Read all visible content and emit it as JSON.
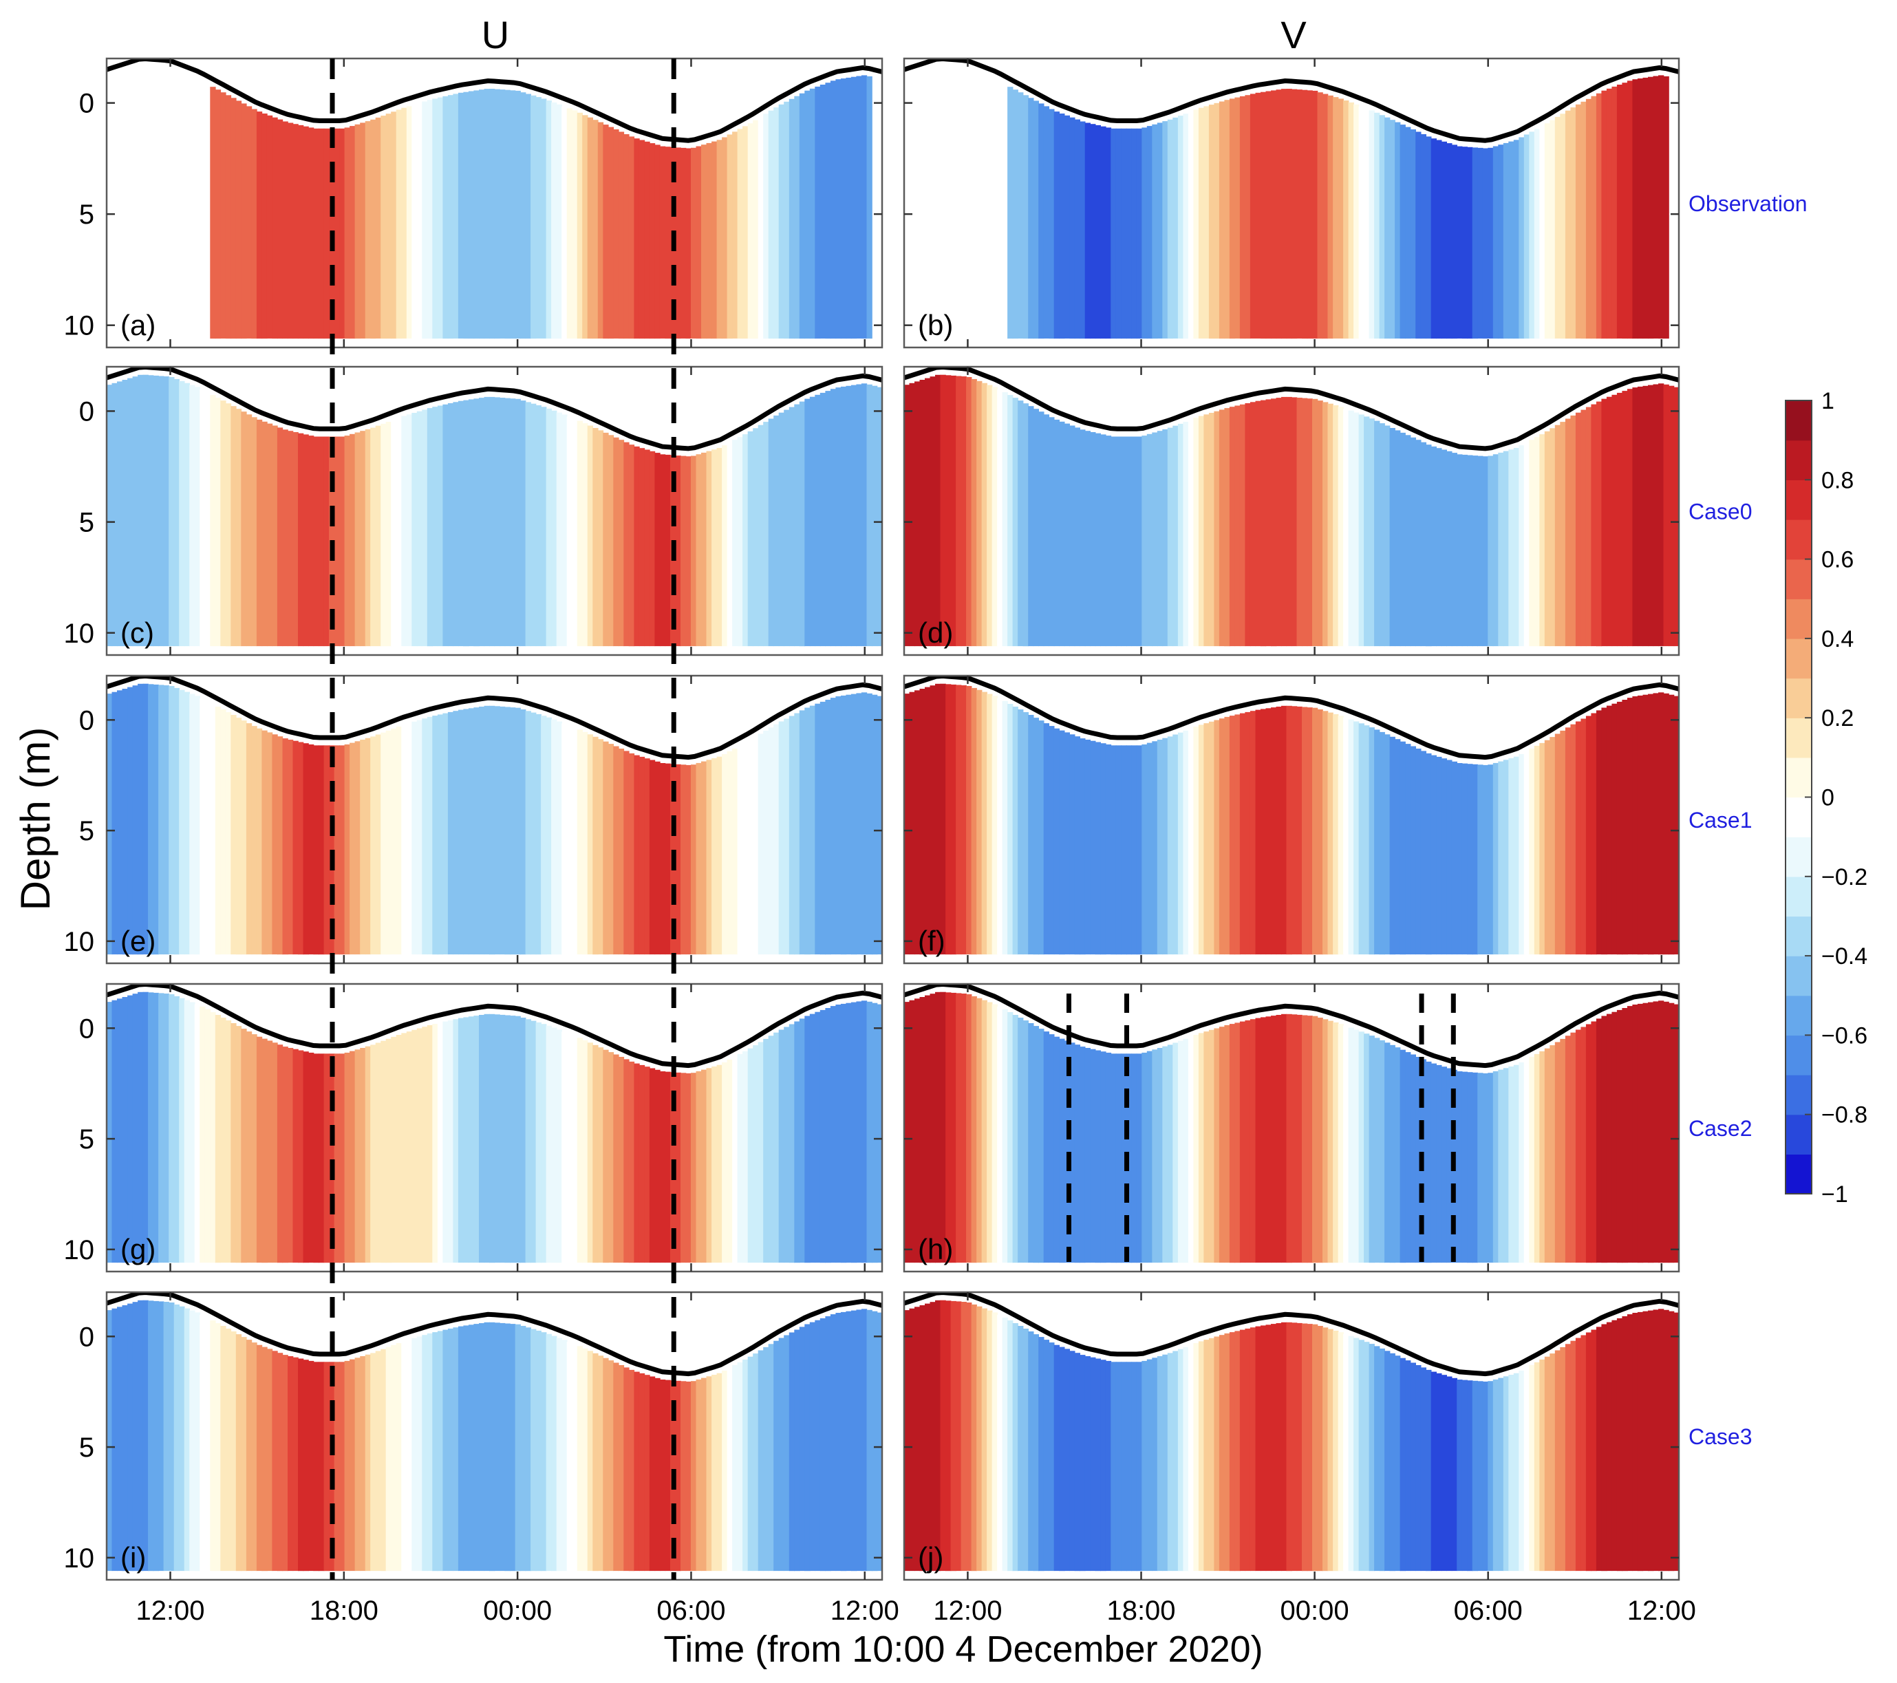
{
  "figure": {
    "column_titles": [
      "U",
      "V"
    ],
    "ylabel": "Depth (m)",
    "xlabel": "Time (from 10:00 4 December 2020)",
    "row_labels": [
      "Observation",
      "Case0",
      "Case1",
      "Case2",
      "Case3"
    ],
    "panel_labels": [
      "(a)",
      "(b)",
      "(c)",
      "(d)",
      "(e)",
      "(f)",
      "(g)",
      "(h)",
      "(i)",
      "(j)"
    ]
  },
  "colors": {
    "row_label": "#1f1fe0",
    "surface_line": "#000000",
    "colormap": [
      "#1414d2",
      "#2848dc",
      "#3b6fe3",
      "#4f8ee8",
      "#66a8ec",
      "#86c2f0",
      "#a8daf5",
      "#cdeefa",
      "#ebf9fd",
      "#ffffff",
      "#fffbe6",
      "#fde9bd",
      "#f9cd97",
      "#f4ac78",
      "#ef8a5f",
      "#ea654c",
      "#e24339",
      "#d52a2a",
      "#bb1a22",
      "#96101e"
    ]
  },
  "chart_data": {
    "type": "heatmap",
    "layout": "5 rows x 2 columns (U, V)",
    "x": {
      "ticks": [
        "12:00",
        "18:00",
        "00:00",
        "06:00",
        "12:00"
      ],
      "tick_hours": [
        2,
        8,
        14,
        20,
        26
      ],
      "range_hours": [
        -0.2,
        26.6
      ]
    },
    "y": {
      "label": "Depth (m)",
      "ticks": [
        0,
        5,
        10
      ],
      "range": [
        11,
        -2
      ],
      "reversed": true
    },
    "colorbar": {
      "range": [
        -1,
        1
      ],
      "ticks": [
        1,
        0.8,
        0.6,
        0.4,
        0.2,
        0,
        -0.2,
        -0.4,
        -0.6,
        -0.8,
        -1
      ],
      "tick_labels": [
        "1",
        "0.8",
        "0.6",
        "0.4",
        "0.2",
        "0",
        "−0.2",
        "−0.4",
        "−0.6",
        "−0.8",
        "−1"
      ]
    },
    "surface_elevation": {
      "time_hours": [
        -0.2,
        1,
        2,
        3,
        4,
        5,
        6,
        7,
        8,
        9,
        10,
        11,
        12,
        13,
        14,
        15,
        16,
        17,
        18,
        19,
        20,
        21,
        22,
        23,
        24,
        25,
        26,
        26.6
      ],
      "depth_m": [
        -1.5,
        -2.0,
        -1.9,
        -1.4,
        -0.7,
        0.0,
        0.5,
        0.8,
        0.8,
        0.4,
        -0.1,
        -0.5,
        -0.8,
        -1.0,
        -0.9,
        -0.5,
        0.0,
        0.6,
        1.2,
        1.6,
        1.7,
        1.3,
        0.6,
        -0.2,
        -0.9,
        -1.4,
        -1.6,
        -1.4
      ]
    },
    "dashed_lines_hours": {
      "U_all_panels": [
        7.6,
        19.4
      ],
      "V_case2": [
        5.5,
        7.5,
        17.7,
        18.8
      ]
    },
    "velocity_profiles": {
      "time_hours": [
        0,
        1,
        2,
        3,
        4,
        5,
        6,
        7,
        8,
        9,
        10,
        11,
        12,
        13,
        14,
        15,
        16,
        17,
        18,
        19,
        20,
        21,
        22,
        23,
        24,
        25,
        26,
        26.6
      ],
      "U": {
        "Observation": {
          "start_hour": 3.3,
          "end_hour": 26.2,
          "values": [
            null,
            null,
            null,
            null,
            0.5,
            0.6,
            0.65,
            0.7,
            0.6,
            0.35,
            0.15,
            -0.2,
            -0.4,
            -0.5,
            -0.5,
            -0.3,
            0.1,
            0.5,
            0.6,
            0.7,
            0.6,
            0.35,
            0.1,
            -0.3,
            -0.55,
            -0.7,
            -0.6,
            null
          ]
        },
        "Case0": {
          "values": [
            -0.4,
            -0.5,
            -0.4,
            -0.1,
            0.2,
            0.4,
            0.55,
            0.7,
            0.5,
            0.2,
            -0.1,
            -0.35,
            -0.45,
            -0.5,
            -0.45,
            -0.3,
            0.0,
            0.3,
            0.6,
            0.75,
            0.5,
            0.1,
            -0.3,
            -0.45,
            -0.5,
            -0.55,
            -0.5,
            -0.45
          ]
        },
        "Case1": {
          "values": [
            -0.6,
            -0.65,
            -0.4,
            -0.1,
            0.1,
            0.25,
            0.55,
            0.8,
            0.5,
            0.15,
            0.0,
            -0.3,
            -0.45,
            -0.5,
            -0.45,
            -0.25,
            0.0,
            0.3,
            0.6,
            0.8,
            0.5,
            0.1,
            -0.05,
            -0.2,
            -0.45,
            -0.6,
            -0.55,
            -0.5
          ]
        },
        "Case2": {
          "values": [
            -0.6,
            -0.65,
            -0.4,
            0.0,
            0.2,
            0.4,
            0.55,
            0.8,
            0.5,
            0.2,
            0.15,
            0.1,
            -0.3,
            -0.45,
            -0.45,
            -0.2,
            0.0,
            0.3,
            0.6,
            0.8,
            0.5,
            0.1,
            -0.2,
            -0.4,
            -0.6,
            -0.7,
            -0.6,
            -0.55
          ]
        },
        "Case3": {
          "values": [
            -0.6,
            -0.65,
            -0.45,
            -0.1,
            0.15,
            0.4,
            0.6,
            0.8,
            0.5,
            0.2,
            0.0,
            -0.3,
            -0.5,
            -0.55,
            -0.5,
            -0.3,
            0.0,
            0.3,
            0.6,
            0.8,
            0.5,
            0.1,
            -0.3,
            -0.55,
            -0.7,
            -0.7,
            -0.6,
            -0.55
          ]
        }
      },
      "V": {
        "Observation": {
          "start_hour": 3.4,
          "end_hour": 26.2,
          "values": [
            null,
            null,
            null,
            null,
            -0.5,
            -0.7,
            -0.8,
            -0.8,
            -0.7,
            -0.4,
            0.1,
            0.4,
            0.65,
            0.7,
            0.65,
            0.3,
            -0.2,
            -0.6,
            -0.8,
            -0.85,
            -0.75,
            -0.5,
            0.0,
            0.3,
            0.6,
            0.8,
            0.85,
            null
          ]
        },
        "Case0": {
          "values": [
            0.85,
            0.8,
            0.6,
            0.0,
            -0.5,
            -0.6,
            -0.6,
            -0.55,
            -0.5,
            -0.4,
            0.1,
            0.5,
            0.65,
            0.65,
            0.5,
            0.0,
            -0.4,
            -0.55,
            -0.6,
            -0.6,
            -0.5,
            -0.2,
            0.2,
            0.5,
            0.7,
            0.8,
            0.8,
            0.75
          ]
        },
        "Case1": {
          "values": [
            0.9,
            0.85,
            0.6,
            0.0,
            -0.5,
            -0.65,
            -0.7,
            -0.65,
            -0.6,
            -0.4,
            0.1,
            0.5,
            0.7,
            0.7,
            0.5,
            0.0,
            -0.5,
            -0.65,
            -0.7,
            -0.7,
            -0.55,
            -0.2,
            0.3,
            0.6,
            0.85,
            0.9,
            0.85,
            0.8
          ]
        },
        "Case2": {
          "values": [
            0.9,
            0.85,
            0.6,
            0.0,
            -0.5,
            -0.65,
            -0.7,
            -0.65,
            -0.6,
            -0.35,
            0.1,
            0.5,
            0.7,
            0.7,
            0.5,
            0.0,
            -0.45,
            -0.6,
            -0.7,
            -0.7,
            -0.55,
            -0.2,
            0.3,
            0.6,
            0.85,
            0.9,
            0.85,
            0.8
          ]
        },
        "Case3": {
          "values": [
            0.85,
            0.8,
            0.55,
            0.0,
            -0.5,
            -0.7,
            -0.75,
            -0.7,
            -0.6,
            -0.4,
            0.1,
            0.5,
            0.7,
            0.7,
            0.5,
            0.0,
            -0.5,
            -0.7,
            -0.8,
            -0.8,
            -0.6,
            -0.2,
            0.3,
            0.6,
            0.85,
            0.9,
            0.85,
            0.8
          ]
        }
      }
    }
  }
}
